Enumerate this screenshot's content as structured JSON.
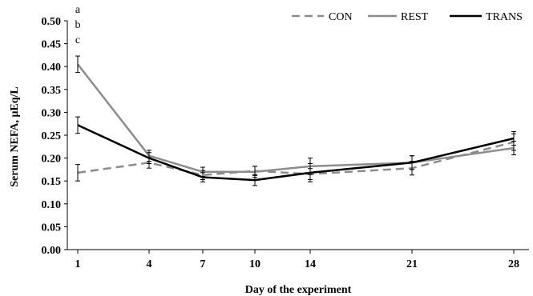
{
  "chart_data": {
    "type": "line",
    "title": "",
    "xlabel": "Day of the experiment",
    "ylabel": "Serum NEFA, μEq/L",
    "categories": [
      "1",
      "4",
      "7",
      "10",
      "14",
      "21",
      "28"
    ],
    "x": [
      1,
      4,
      7,
      10,
      14,
      21,
      28
    ],
    "ylim": [
      0,
      0.5
    ],
    "yticks": [
      "0.00",
      "0.05",
      "0.10",
      "0.15",
      "0.20",
      "0.25",
      "0.30",
      "0.35",
      "0.40",
      "0.45",
      "0.50"
    ],
    "grid": false,
    "legend_position": "top-right",
    "series": [
      {
        "name": "CON",
        "style": "dashed",
        "color": "#8c8c8c",
        "values": [
          0.168,
          0.19,
          0.163,
          0.172,
          0.165,
          0.178,
          0.235
        ],
        "errors": [
          0.018,
          0.012,
          0.01,
          0.01,
          0.012,
          0.015,
          0.018
        ]
      },
      {
        "name": "REST",
        "style": "solid",
        "color": "#8c8c8c",
        "values": [
          0.405,
          0.205,
          0.17,
          0.17,
          0.182,
          0.19,
          0.222
        ],
        "errors": [
          0.018,
          0.012,
          0.01,
          0.012,
          0.018,
          0.015,
          0.015
        ]
      },
      {
        "name": "TRANS",
        "style": "solid",
        "color": "#000000",
        "values": [
          0.272,
          0.2,
          0.158,
          0.152,
          0.168,
          0.19,
          0.243
        ],
        "errors": [
          0.018,
          0.012,
          0.01,
          0.012,
          0.02,
          0.015,
          0.015
        ]
      }
    ],
    "annotations": [
      "a",
      "b",
      "c"
    ]
  }
}
